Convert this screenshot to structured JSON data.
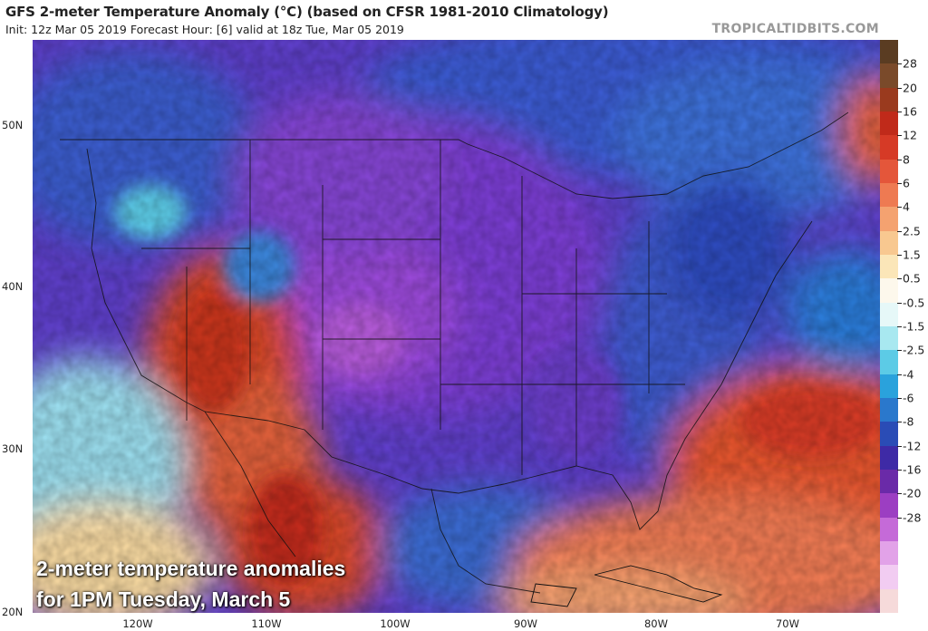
{
  "header": {
    "title": "GFS 2-meter Temperature Anomaly (°C) (based on CFSR 1981-2010 Climatology)",
    "subtitle": "Init: 12z Mar 05 2019   Forecast Hour: [6]   valid at 18z Tue, Mar 05 2019",
    "brand": "TROPICALTIDBITS.COM"
  },
  "map": {
    "lat_labels": [
      "50N",
      "40N",
      "30N",
      "20N"
    ],
    "lon_labels": [
      "120W",
      "110W",
      "100W",
      "90W",
      "80W",
      "70W"
    ],
    "caption_line1": "2-meter temperature anomalies",
    "caption_line2": "for 1PM Tuesday, March 5"
  },
  "colorbar": {
    "labels": [
      "28",
      "20",
      "16",
      "12",
      "8",
      "6",
      "4",
      "2.5",
      "1.5",
      "0.5",
      "-0.5",
      "-1.5",
      "-2.5",
      "-4",
      "-6",
      "-8",
      "-12",
      "-16",
      "-20",
      "-28"
    ],
    "colors": [
      "#5a3c22",
      "#7a4a2a",
      "#9a3a1e",
      "#c02a1a",
      "#d63a26",
      "#e4563a",
      "#ee7a52",
      "#f4a270",
      "#f8c890",
      "#fbe6b8",
      "#fdf8ec",
      "#e6f8f8",
      "#a8e8f0",
      "#5ccbe6",
      "#2aa2dc",
      "#2a78cc",
      "#2a4cb6",
      "#3e2aa6",
      "#6a2aa8",
      "#9c3ec2",
      "#c56ad8",
      "#e2a2e8",
      "#f2ccf2",
      "#f6dada"
    ]
  }
}
